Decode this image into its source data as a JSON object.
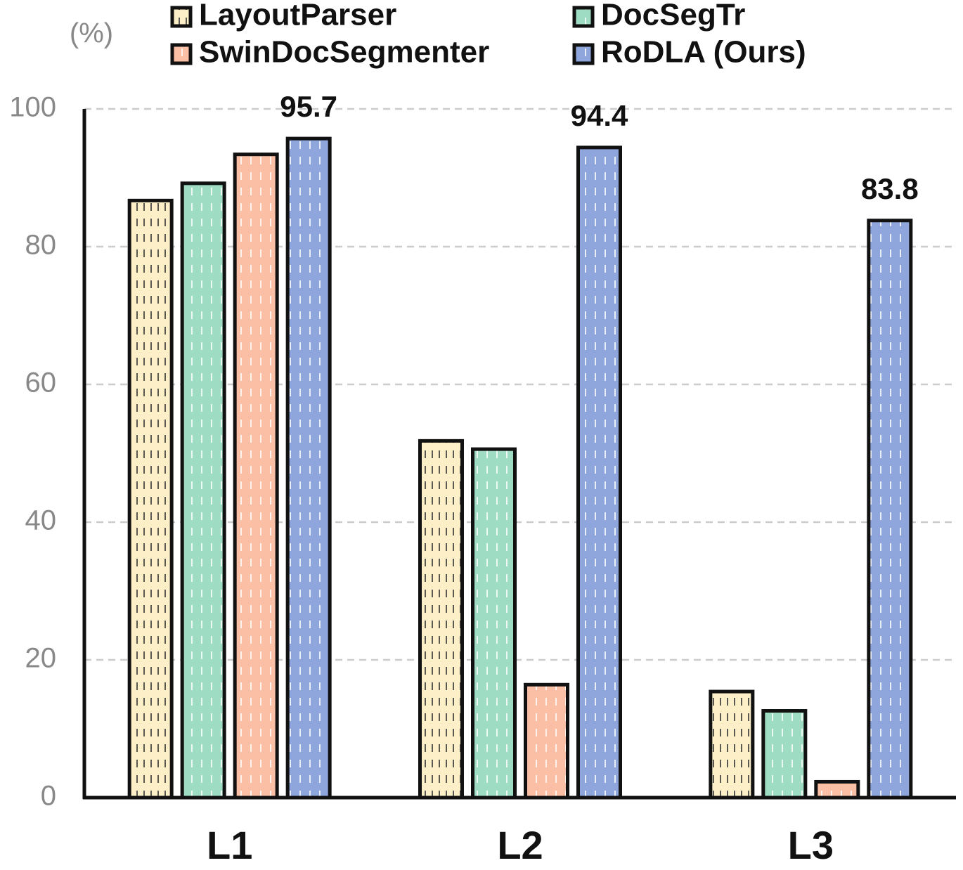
{
  "chart_data": {
    "type": "bar",
    "y_label": "(%)",
    "categories": [
      "L1",
      "L2",
      "L3"
    ],
    "series": [
      {
        "name": "LayoutParser",
        "color": "#fdf0c8",
        "values": [
          86.7,
          51.8,
          15.4
        ]
      },
      {
        "name": "DocSegTr",
        "color": "#9fdcc4",
        "values": [
          89.2,
          50.6,
          12.6
        ]
      },
      {
        "name": "SwinDocSegmenter",
        "color": "#fbbfa6",
        "values": [
          93.4,
          16.4,
          2.3
        ]
      },
      {
        "name": "RoDLA (Ours)",
        "color": "#8fa6dc",
        "values": [
          95.7,
          94.4,
          83.8
        ],
        "show_values": true
      }
    ],
    "ylim": [
      0,
      100
    ],
    "yticks": [
      0,
      20,
      40,
      60,
      80,
      100
    ],
    "grid": true
  }
}
